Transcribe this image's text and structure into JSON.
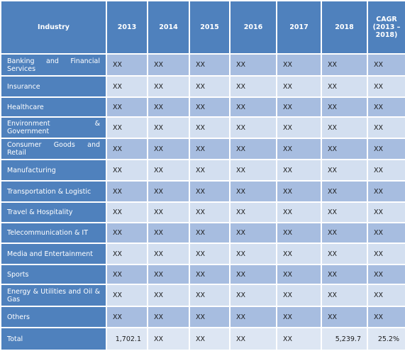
{
  "table": {
    "header": [
      "Industry",
      "2013",
      "2014",
      "2015",
      "2016",
      "2017",
      "2018",
      "CAGR (2013 – 2018)"
    ],
    "rows": [
      [
        "Banking and Financial Services",
        "XX",
        "XX",
        "XX",
        "XX",
        "XX",
        "XX",
        "XX"
      ],
      [
        "Insurance",
        "XX",
        "XX",
        "XX",
        "XX",
        "XX",
        "XX",
        "XX"
      ],
      [
        "Healthcare",
        "XX",
        "XX",
        "XX",
        "XX",
        "XX",
        "XX",
        "XX"
      ],
      [
        "Environment & Government",
        "XX",
        "XX",
        "XX",
        "XX",
        "XX",
        "XX",
        "XX"
      ],
      [
        "Consumer Goods and Retail",
        "XX",
        "XX",
        "XX",
        "XX",
        "XX",
        "XX",
        "XX"
      ],
      [
        "Manufacturing",
        "XX",
        "XX",
        "XX",
        "XX",
        "XX",
        "XX",
        "XX"
      ],
      [
        "Transportation & Logistic",
        "XX",
        "XX",
        "XX",
        "XX",
        "XX",
        "XX",
        "XX"
      ],
      [
        "Travel & Hospitality",
        "XX",
        "XX",
        "XX",
        "XX",
        "XX",
        "XX",
        "XX"
      ],
      [
        "Telecommunication & IT",
        "XX",
        "XX",
        "XX",
        "XX",
        "XX",
        "XX",
        "XX"
      ],
      [
        "Media and Entertainment",
        "XX",
        "XX",
        "XX",
        "XX",
        "XX",
        "XX",
        "XX"
      ],
      [
        "Sports",
        "XX",
        "XX",
        "XX",
        "XX",
        "XX",
        "XX",
        "XX"
      ],
      [
        "Energy & Utilities and Oil & Gas",
        "XX",
        "XX",
        "XX",
        "XX",
        "XX",
        "XX",
        "XX"
      ],
      [
        "Others",
        "XX",
        "XX",
        "XX",
        "XX",
        "XX",
        "XX",
        "XX"
      ],
      [
        "Total",
        "1,702.1",
        "XX",
        "XX",
        "XX",
        "XX",
        "5,239.7",
        "25.2%"
      ]
    ]
  }
}
